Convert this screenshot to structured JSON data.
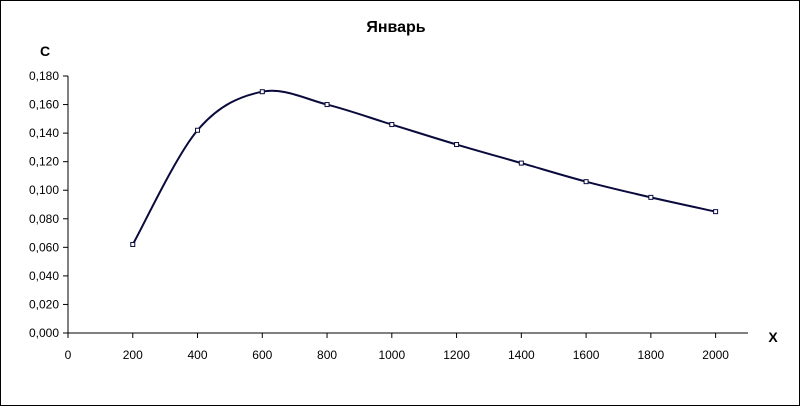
{
  "chart_data": {
    "type": "line",
    "title": "Январь",
    "xlabel": "X",
    "ylabel": "C",
    "xlim": [
      0,
      2100
    ],
    "ylim": [
      0,
      0.18
    ],
    "x_ticks": [
      0,
      200,
      400,
      600,
      800,
      1000,
      1200,
      1400,
      1600,
      1800,
      2000
    ],
    "x_tick_labels": [
      "0",
      "200",
      "400",
      "600",
      "800",
      "1000",
      "1200",
      "1400",
      "1600",
      "1800",
      "2000"
    ],
    "y_ticks": [
      0,
      0.02,
      0.04,
      0.06,
      0.08,
      0.1,
      0.12,
      0.14,
      0.16,
      0.18
    ],
    "y_tick_labels": [
      "0,000",
      "0,020",
      "0,040",
      "0,060",
      "0,080",
      "0,100",
      "0,120",
      "0,140",
      "0,160",
      "0,180"
    ],
    "grid": false,
    "series": [
      {
        "x": [
          200,
          400,
          600,
          800,
          1000,
          1200,
          1400,
          1600,
          1800,
          2000
        ],
        "values": [
          0.062,
          0.142,
          0.169,
          0.16,
          0.146,
          0.132,
          0.119,
          0.106,
          0.095,
          0.085
        ]
      }
    ],
    "colors": {
      "line": "#0a0a3c",
      "axis": "#000000",
      "background": "#ffffff"
    }
  }
}
